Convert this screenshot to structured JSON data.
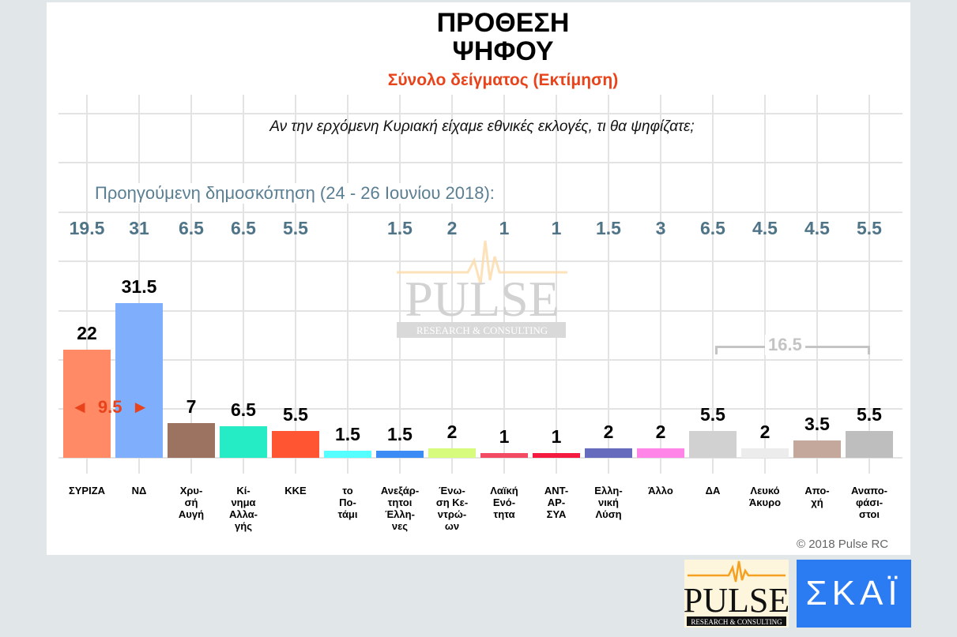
{
  "header": {
    "title_line1": "ΠΡΟΘΕΣΗ",
    "title_line2": "ΨΗΦΟΥ",
    "subtitle": "Σύνολο δείγματος   (Εκτίμηση)",
    "question": "Αν την ερχόμενη Κυριακή είχαμε εθνικές εκλογές, τι θα ψηφίζατε;"
  },
  "previous": {
    "label": "Προηγούμενη δημοσκόπηση (24 - 26 Ιουνίου 2018):",
    "values": [
      "19.5",
      "31",
      "6.5",
      "6.5",
      "5.5",
      "",
      "1.5",
      "2",
      "1",
      "1",
      "1.5",
      "3",
      "6.5",
      "4.5",
      "4.5",
      "5.5"
    ]
  },
  "annotations": {
    "gap_label": "9.5",
    "gap_left_arrow": "◄",
    "gap_right_arrow": "►",
    "bracket_label": "16.5"
  },
  "watermark": {
    "name": "PULSE",
    "tagline": "RESEARCH & CONSULTING"
  },
  "footer": {
    "copyright": "© 2018 Pulse RC",
    "logo_pulse_name": "PULSE",
    "logo_pulse_tagline": "RESEARCH & CONSULTING",
    "logo_skai": "ΣΚΑΪ"
  },
  "colors": {
    "accent": "#e8431a",
    "previous_values": "#4f7487",
    "bar_colors": [
      "#ff8a65",
      "#7eaefc",
      "#9c7360",
      "#26ecc6",
      "#ff5533",
      "#55ffff",
      "#3d8cf5",
      "#d6fb7d",
      "#f24b63",
      "#f51a40",
      "#676bbd",
      "#ff85e8",
      "#d1d1d1",
      "#ececec",
      "#c4a89b",
      "#bebebe"
    ]
  },
  "chart_data": {
    "type": "bar",
    "title": "ΠΡΟΘΕΣΗ ΨΗΦΟΥ",
    "subtitle": "Σύνολο δείγματος (Εκτίμηση)",
    "xlabel": "",
    "ylabel": "",
    "ylim": [
      0,
      35
    ],
    "grid": true,
    "categories": [
      "ΣΥΡΙΖΑ",
      "ΝΔ",
      "Χρυσή Αυγή",
      "Κίνημα Αλλαγής",
      "ΚΚΕ",
      "το Ποτάμι",
      "Ανεξάρτητοι Έλληνες",
      "Ένωση Κεντρώων",
      "Λαϊκή Ενότητα",
      "ΑΝΤΑΡΣΥΑ",
      "Ελληνική Λύση",
      "Άλλο",
      "ΔΑ",
      "Λευκό Άκυρο",
      "Αποχή",
      "Αναποφάσιστοι"
    ],
    "category_labels": [
      "ΣΥΡΙΖΑ",
      "ΝΔ",
      "Χρυ-\nσή\nΑυγή",
      "Κί-\nνημα\nΑλλα-\nγής",
      "ΚΚΕ",
      "το\nΠο-\nτάμι",
      "Ανεξάρ-\nτητοι\nΈλλη-\nνες",
      "Ένω-\nση Κε-\nντρώ-\nων",
      "Λαϊκή\nΕνό-\nτητα",
      "ΑΝΤ-\nΑΡ-\nΣΥΑ",
      "Ελλη-\nνική\nΛύση",
      "Άλλο",
      "ΔΑ",
      "Λευκό\nΆκυρο",
      "Απο-\nχή",
      "Αναπο-\nφάσι-\nστοι"
    ],
    "series": [
      {
        "name": "Εκτίμηση",
        "values": [
          22,
          31.5,
          7,
          6.5,
          5.5,
          1.5,
          1.5,
          2,
          1,
          1,
          2,
          2,
          5.5,
          2,
          3.5,
          5.5
        ]
      },
      {
        "name": "Προηγούμενη δημοσκόπηση (24 - 26 Ιουνίου 2018)",
        "values": [
          19.5,
          31,
          6.5,
          6.5,
          5.5,
          null,
          1.5,
          2,
          1,
          1,
          1.5,
          3,
          6.5,
          4.5,
          4.5,
          5.5
        ]
      }
    ],
    "value_labels": [
      "22",
      "31.5",
      "7",
      "6.5",
      "5.5",
      "1.5",
      "1.5",
      "2",
      "1",
      "1",
      "2",
      "2",
      "5.5",
      "2",
      "3.5",
      "5.5"
    ],
    "annotations": [
      {
        "text": "◄ 9.5 ►",
        "note": "gap ΝΔ - ΣΥΡΙΖΑ"
      },
      {
        "text": "16.5",
        "note": "bracket over ΔΑ, Λευκό Άκυρο, Αποχή, Αναποφάσιστοι"
      }
    ]
  }
}
